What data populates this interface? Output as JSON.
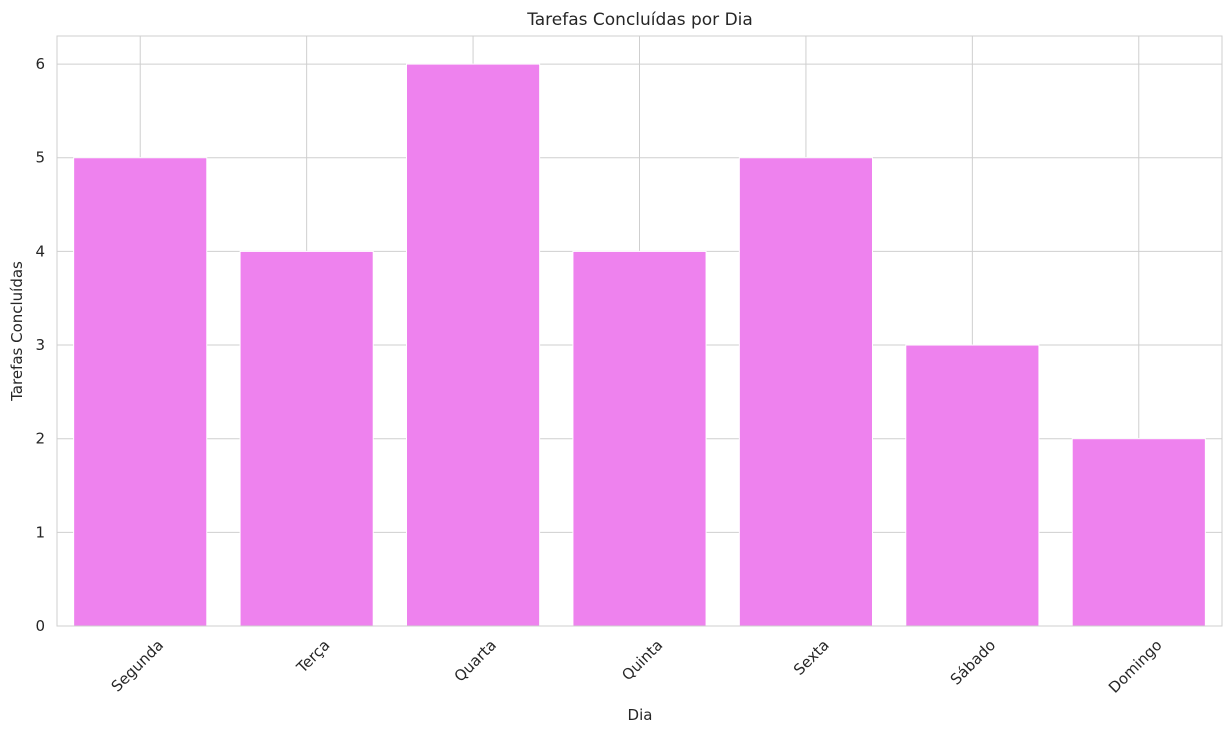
{
  "chart_data": {
    "type": "bar",
    "title": "Tarefas Concluídas por Dia",
    "xlabel": "Dia",
    "ylabel": "Tarefas Concluídas",
    "categories": [
      "Segunda",
      "Terça",
      "Quarta",
      "Quinta",
      "Sexta",
      "Sábado",
      "Domingo"
    ],
    "values": [
      5,
      4,
      6,
      4,
      5,
      3,
      2
    ],
    "ylim": [
      0,
      6.3
    ],
    "yticks": [
      0,
      1,
      2,
      3,
      4,
      5,
      6
    ],
    "bar_color": "#ee82ee",
    "grid": true,
    "xtick_rotation_deg": 45
  }
}
